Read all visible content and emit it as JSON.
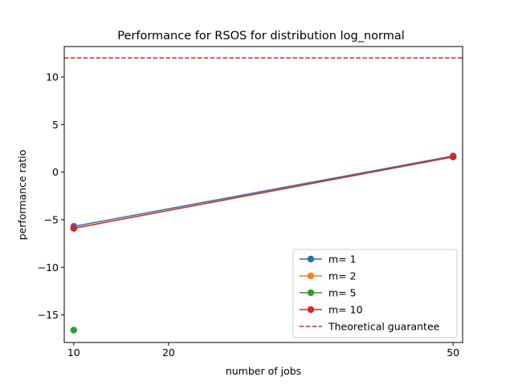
{
  "chart_data": {
    "type": "scatter",
    "title": "Performance for RSOS for distribution log_normal",
    "xlabel": "number of jobs",
    "ylabel": "performance ratio",
    "xlim": [
      9,
      51
    ],
    "ylim": [
      -17.9,
      13.2
    ],
    "xticks": [
      10,
      20,
      50
    ],
    "yticks": [
      -15,
      -10,
      -5,
      0,
      5,
      10
    ],
    "ytick_labels": [
      "−15",
      "−10",
      "−5",
      "0",
      "5",
      "10"
    ],
    "x_tick_labels": [
      "10",
      "20",
      "50"
    ],
    "grid": false,
    "legend_position": "lower-right",
    "series": [
      {
        "name": "m= 1",
        "color": "#1f77b4",
        "x": [
          10,
          50
        ],
        "y": [
          -5.7,
          1.7
        ]
      },
      {
        "name": "m= 2",
        "color": "#ff7f0e",
        "x": [
          10,
          50
        ],
        "y": [
          -5.9,
          1.6
        ]
      },
      {
        "name": "m= 5",
        "color": "#2ca02c",
        "x": [
          10
        ],
        "y": [
          -16.6
        ]
      },
      {
        "name": "m= 10",
        "color": "#d62728",
        "x": [
          10,
          50
        ],
        "y": [
          -5.9,
          1.6
        ]
      }
    ],
    "reference_line": {
      "name": "Theoretical guarantee",
      "color": "#d62728",
      "y": 12,
      "style": "dashed"
    }
  }
}
